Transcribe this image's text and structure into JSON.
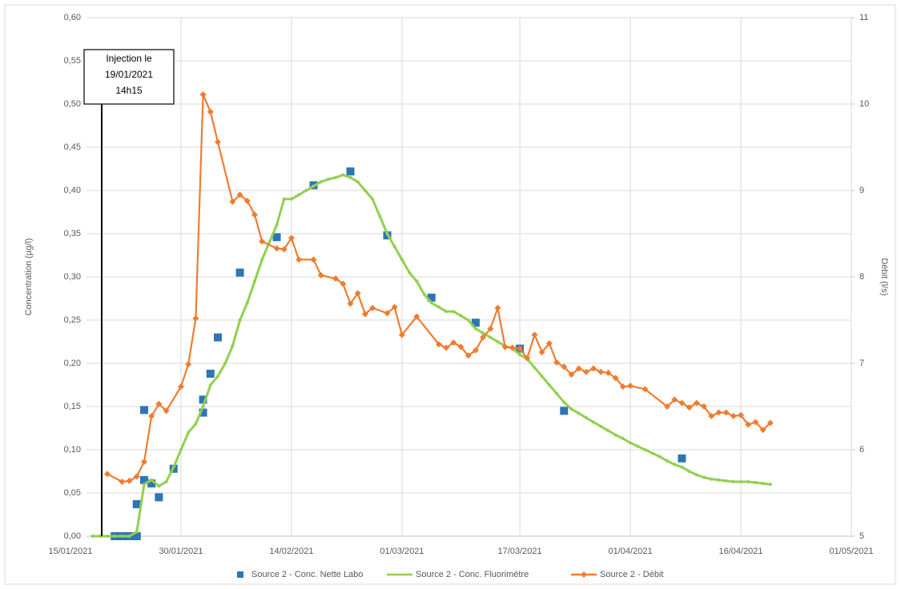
{
  "chart_data": {
    "type": "line",
    "ylabel": "Concentration (µg/l)",
    "y2label": "Débit (l/s)",
    "annotation": [
      "Injection le",
      "19/01/2021",
      "14h15"
    ],
    "xlim": [
      "2021-01-15",
      "2021-05-01"
    ],
    "xticks": [
      {
        "value": "2021-01-15",
        "label": "15/01/2021"
      },
      {
        "value": "2021-01-30",
        "label": "30/01/2021"
      },
      {
        "value": "2021-02-14",
        "label": "14/02/2021"
      },
      {
        "value": "2021-03-01",
        "label": "01/03/2021"
      },
      {
        "value": "2021-03-17",
        "label": "17/03/2021"
      },
      {
        "value": "2021-04-01",
        "label": "01/04/2021"
      },
      {
        "value": "2021-04-16",
        "label": "16/04/2021"
      },
      {
        "value": "2021-05-01",
        "label": "01/05/2021"
      }
    ],
    "ylim": [
      0,
      0.6
    ],
    "yticks": [
      {
        "value": 0,
        "label": "0,00"
      },
      {
        "value": 0.05,
        "label": "0,05"
      },
      {
        "value": 0.1,
        "label": "0,10"
      },
      {
        "value": 0.15,
        "label": "0,15"
      },
      {
        "value": 0.2,
        "label": "0,20"
      },
      {
        "value": 0.25,
        "label": "0,25"
      },
      {
        "value": 0.3,
        "label": "0,30"
      },
      {
        "value": 0.35,
        "label": "0,35"
      },
      {
        "value": 0.4,
        "label": "0,40"
      },
      {
        "value": 0.45,
        "label": "0,45"
      },
      {
        "value": 0.5,
        "label": "0,50"
      },
      {
        "value": 0.55,
        "label": "0,55"
      },
      {
        "value": 0.6,
        "label": "0,60"
      }
    ],
    "y2lim": [
      5,
      11
    ],
    "y2ticks": [
      5,
      6,
      7,
      8,
      9,
      10,
      11
    ],
    "grid": true,
    "legend": "bottom",
    "series": [
      {
        "name": "Source 2 - Conc. Nette Labo",
        "type": "scatter",
        "color": "#2e75b6",
        "x": [
          "2021-01-21",
          "2021-01-22",
          "2021-01-23",
          "2021-01-24",
          "2021-01-24",
          "2021-01-25",
          "2021-01-25",
          "2021-01-26",
          "2021-01-27",
          "2021-01-29",
          "2021-02-02",
          "2021-02-02",
          "2021-02-03",
          "2021-02-04",
          "2021-02-07",
          "2021-02-12",
          "2021-02-17",
          "2021-02-22",
          "2021-02-27",
          "2021-03-05",
          "2021-03-11",
          "2021-03-17",
          "2021-03-23",
          "2021-04-08"
        ],
        "values": [
          0,
          0,
          0,
          0,
          0.037,
          0.146,
          0.065,
          0.061,
          0.045,
          0.078,
          0.143,
          0.158,
          0.188,
          0.23,
          0.305,
          0.346,
          0.406,
          0.422,
          0.348,
          0.276,
          0.247,
          0.217,
          0.145,
          0.09
        ]
      },
      {
        "name": "Source 2 - Conc. Fluorimètre",
        "type": "line",
        "color": "#92d050",
        "x": [
          "2021-01-18",
          "2021-01-19",
          "2021-01-20",
          "2021-01-21",
          "2021-01-22",
          "2021-01-23",
          "2021-01-24",
          "2021-01-25",
          "2021-01-26",
          "2021-01-27",
          "2021-01-28",
          "2021-01-29",
          "2021-01-30",
          "2021-01-31",
          "2021-02-01",
          "2021-02-02",
          "2021-02-03",
          "2021-02-04",
          "2021-02-05",
          "2021-02-06",
          "2021-02-07",
          "2021-02-08",
          "2021-02-09",
          "2021-02-10",
          "2021-02-11",
          "2021-02-12",
          "2021-02-13",
          "2021-02-14",
          "2021-02-15",
          "2021-02-16",
          "2021-02-17",
          "2021-02-18",
          "2021-02-19",
          "2021-02-20",
          "2021-02-21",
          "2021-02-22",
          "2021-02-23",
          "2021-02-24",
          "2021-02-25",
          "2021-02-26",
          "2021-02-27",
          "2021-02-28",
          "2021-03-01",
          "2021-03-02",
          "2021-03-03",
          "2021-03-04",
          "2021-03-05",
          "2021-03-06",
          "2021-03-07",
          "2021-03-08",
          "2021-03-09",
          "2021-03-10",
          "2021-03-11",
          "2021-03-12",
          "2021-03-13",
          "2021-03-14",
          "2021-03-15",
          "2021-03-16",
          "2021-03-17",
          "2021-03-18",
          "2021-03-19",
          "2021-03-20",
          "2021-03-21",
          "2021-03-22",
          "2021-03-23",
          "2021-03-24",
          "2021-03-25",
          "2021-03-26",
          "2021-03-27",
          "2021-03-28",
          "2021-03-29",
          "2021-03-30",
          "2021-03-31",
          "2021-04-01",
          "2021-04-02",
          "2021-04-03",
          "2021-04-04",
          "2021-04-05",
          "2021-04-06",
          "2021-04-07",
          "2021-04-08",
          "2021-04-09",
          "2021-04-10",
          "2021-04-11",
          "2021-04-12",
          "2021-04-13",
          "2021-04-14",
          "2021-04-15",
          "2021-04-16",
          "2021-04-17",
          "2021-04-18",
          "2021-04-19",
          "2021-04-20"
        ],
        "values": [
          0,
          0,
          0,
          0,
          0,
          0,
          0.005,
          0.06,
          0.065,
          0.058,
          0.063,
          0.08,
          0.1,
          0.12,
          0.13,
          0.15,
          0.175,
          0.185,
          0.2,
          0.22,
          0.25,
          0.27,
          0.295,
          0.32,
          0.34,
          0.36,
          0.39,
          0.39,
          0.395,
          0.4,
          0.405,
          0.41,
          0.413,
          0.415,
          0.418,
          0.415,
          0.41,
          0.4,
          0.39,
          0.37,
          0.35,
          0.335,
          0.32,
          0.305,
          0.295,
          0.28,
          0.27,
          0.265,
          0.26,
          0.26,
          0.255,
          0.25,
          0.24,
          0.235,
          0.23,
          0.225,
          0.22,
          0.217,
          0.21,
          0.205,
          0.195,
          0.185,
          0.175,
          0.165,
          0.155,
          0.147,
          0.142,
          0.137,
          0.132,
          0.127,
          0.122,
          0.117,
          0.113,
          0.108,
          0.104,
          0.1,
          0.096,
          0.092,
          0.087,
          0.083,
          0.08,
          0.075,
          0.071,
          0.068,
          0.066,
          0.065,
          0.064,
          0.063,
          0.063,
          0.063,
          0.062,
          0.061,
          0.06
        ]
      },
      {
        "name": "Source 2 - Débit",
        "type": "line",
        "axis": "y2",
        "color": "#ed7d31",
        "x": [
          "2021-01-20",
          "2021-01-22",
          "2021-01-23",
          "2021-01-24",
          "2021-01-25",
          "2021-01-26",
          "2021-01-27",
          "2021-01-28",
          "2021-01-30",
          "2021-01-31",
          "2021-02-01",
          "2021-02-02",
          "2021-02-03",
          "2021-02-04",
          "2021-02-06",
          "2021-02-07",
          "2021-02-08",
          "2021-02-09",
          "2021-02-10",
          "2021-02-12",
          "2021-02-13",
          "2021-02-14",
          "2021-02-15",
          "2021-02-17",
          "2021-02-18",
          "2021-02-20",
          "2021-02-21",
          "2021-02-22",
          "2021-02-23",
          "2021-02-24",
          "2021-02-25",
          "2021-02-27",
          "2021-02-28",
          "2021-03-01",
          "2021-03-03",
          "2021-03-06",
          "2021-03-07",
          "2021-03-08",
          "2021-03-09",
          "2021-03-10",
          "2021-03-11",
          "2021-03-12",
          "2021-03-13",
          "2021-03-14",
          "2021-03-15",
          "2021-03-16",
          "2021-03-17",
          "2021-03-18",
          "2021-03-19",
          "2021-03-20",
          "2021-03-21",
          "2021-03-22",
          "2021-03-23",
          "2021-03-24",
          "2021-03-25",
          "2021-03-26",
          "2021-03-27",
          "2021-03-28",
          "2021-03-29",
          "2021-03-30",
          "2021-03-31",
          "2021-04-01",
          "2021-04-03",
          "2021-04-06",
          "2021-04-07",
          "2021-04-08",
          "2021-04-09",
          "2021-04-10",
          "2021-04-11",
          "2021-04-12",
          "2021-04-13",
          "2021-04-14",
          "2021-04-15",
          "2021-04-16",
          "2021-04-17",
          "2021-04-18",
          "2021-04-19",
          "2021-04-20"
        ],
        "values": [
          5.72,
          5.63,
          5.64,
          5.69,
          5.86,
          6.39,
          6.53,
          6.45,
          6.73,
          6.99,
          7.52,
          10.11,
          9.91,
          9.56,
          8.87,
          8.95,
          8.88,
          8.72,
          8.41,
          8.33,
          8.32,
          8.45,
          8.2,
          8.2,
          8.02,
          7.98,
          7.92,
          7.69,
          7.81,
          7.57,
          7.64,
          7.58,
          7.65,
          7.33,
          7.54,
          7.22,
          7.18,
          7.24,
          7.19,
          7.09,
          7.15,
          7.3,
          7.4,
          7.64,
          7.19,
          7.18,
          7.17,
          7.06,
          7.33,
          7.13,
          7.23,
          7.01,
          6.96,
          6.87,
          6.94,
          6.9,
          6.94,
          6.9,
          6.89,
          6.83,
          6.73,
          6.74,
          6.7,
          6.5,
          6.58,
          6.54,
          6.49,
          6.54,
          6.5,
          6.39,
          6.43,
          6.43,
          6.39,
          6.4,
          6.29,
          6.32,
          6.23,
          6.31
        ]
      }
    ]
  }
}
